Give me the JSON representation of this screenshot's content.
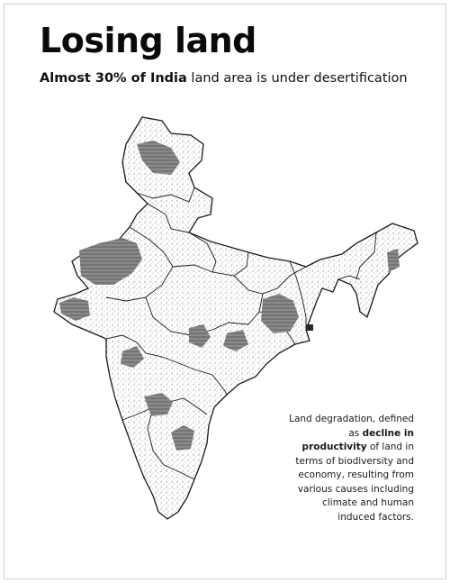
{
  "title": "Losing land",
  "subtitle": {
    "bold": "Almost 30% of India",
    "rest": " land area is under desertification"
  },
  "caption": {
    "part1": "Land degradation, defined as ",
    "bold": "decline in productivity",
    "part2": " of land in terms of biodiversity and economy, resulting from various causes including climate and human induced factors."
  },
  "colors": {
    "degraded_land": "#7a7a7a",
    "boundary": "#1a1a1a",
    "background": "#ffffff"
  }
}
